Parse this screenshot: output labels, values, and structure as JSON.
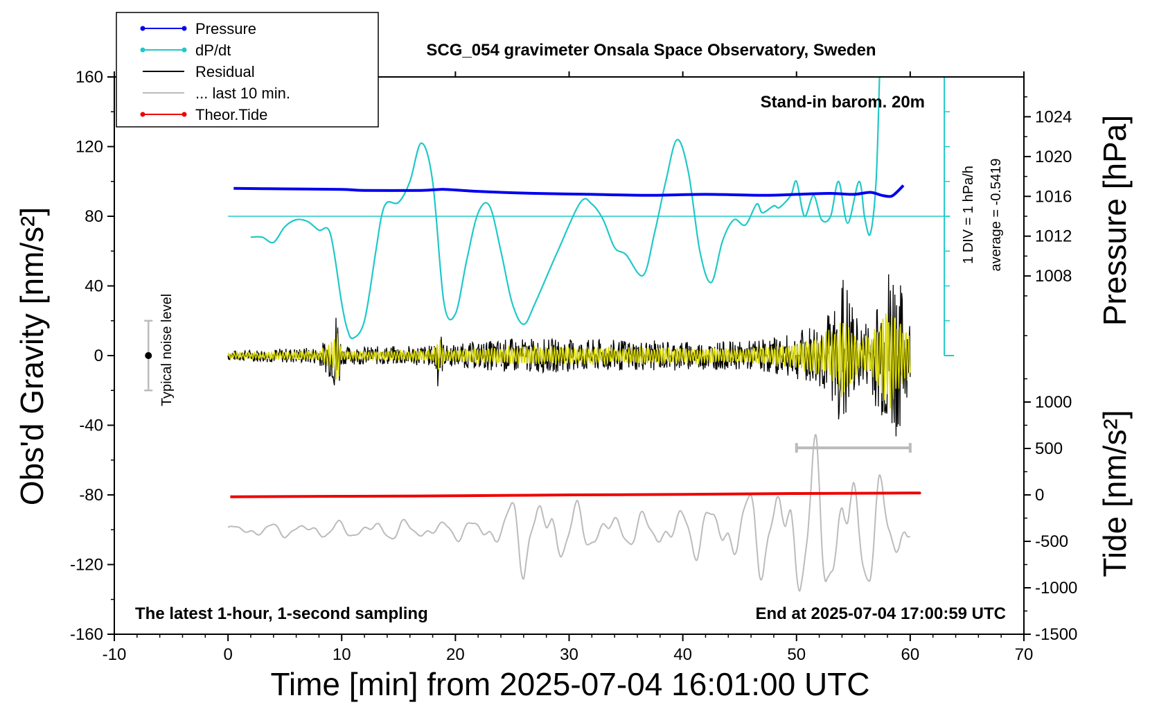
{
  "chart_data": {
    "type": "line",
    "title": "SCG_054 gravimeter Onsala Space Observatory, Sweden",
    "xlabel": "Time [min] from 2025-07-04 16:01:00 UTC",
    "ylabel_left": "Obs'd Gravity [nm/s²]",
    "ylabel_right_top": "Pressure [hPa]",
    "ylabel_right_bottom": "Tide [nm/s²]",
    "xlim": [
      -10,
      70
    ],
    "ylim": [
      -160,
      160
    ],
    "pressure_ylim": [
      1000,
      1028
    ],
    "tide_ylim": [
      -1500,
      4500
    ],
    "x_ticks": [
      "-10",
      "0",
      "10",
      "20",
      "30",
      "40",
      "50",
      "60",
      "70"
    ],
    "y_ticks": [
      "160",
      "120",
      "80",
      "40",
      "0",
      "-40",
      "-80",
      "-120",
      "-160"
    ],
    "pressure_ticks": [
      "1024",
      "1020",
      "1016",
      "1012",
      "1008"
    ],
    "tide_ticks": [
      "1000",
      "500",
      "0",
      "-500",
      "-1000",
      "-1500"
    ],
    "annotations": {
      "barometer": "Stand-in barom. 20m",
      "scale_div": "1 DIV = 1 hPa/h",
      "average": "average = -0.5419",
      "noise": "Typical noise level",
      "latest": "The latest 1-hour, 1-second sampling",
      "end_time": "End at 2025-07-04 17:00:59 UTC"
    },
    "legend": {
      "position": "top-left",
      "entries": [
        {
          "label": "Pressure",
          "color": "#0000ee",
          "marker": true
        },
        {
          "label": "dP/dt",
          "color": "#20c8c8",
          "marker": true
        },
        {
          "label": "Residual",
          "color": "#000000",
          "marker": false
        },
        {
          "label": "... last 10 min.",
          "color": "#bbbbbb",
          "marker": false
        },
        {
          "label": "Theor.Tide",
          "color": "#ee0000",
          "marker": true
        }
      ]
    },
    "colors": {
      "pressure": "#0000ee",
      "dpdt": "#20c8c8",
      "residual": "#000000",
      "residual_filtered": "#d8d800",
      "last10": "#bbbbbb",
      "tide": "#ee0000",
      "noise_bar": "#bbbbbb"
    },
    "series": [
      {
        "name": "Pressure",
        "axis": "pressure",
        "points": [
          [
            0.5,
            1016.8
          ],
          [
            5,
            1016.75
          ],
          [
            10,
            1016.7
          ],
          [
            12,
            1016.6
          ],
          [
            17,
            1016.6
          ],
          [
            19,
            1016.7
          ],
          [
            22,
            1016.5
          ],
          [
            27,
            1016.3
          ],
          [
            32,
            1016.2
          ],
          [
            37,
            1016.1
          ],
          [
            42,
            1016.2
          ],
          [
            47,
            1016.1
          ],
          [
            50,
            1016.2
          ],
          [
            53,
            1016.3
          ],
          [
            55,
            1016.2
          ],
          [
            56.5,
            1016.4
          ],
          [
            57.5,
            1016.1
          ],
          [
            58.3,
            1016.0
          ],
          [
            58.8,
            1016.4
          ],
          [
            59.4,
            1017.1
          ]
        ]
      },
      {
        "name": "dP/dt",
        "axis": "gravity",
        "points": [
          [
            2,
            68
          ],
          [
            3,
            68
          ],
          [
            4,
            65
          ],
          [
            5,
            74
          ],
          [
            6,
            78
          ],
          [
            7,
            77
          ],
          [
            8,
            72
          ],
          [
            9,
            70
          ],
          [
            10,
            30
          ],
          [
            10.5,
            15
          ],
          [
            11,
            10
          ],
          [
            12,
            20
          ],
          [
            13,
            60
          ],
          [
            13.5,
            80
          ],
          [
            14,
            88
          ],
          [
            15,
            88
          ],
          [
            16,
            100
          ],
          [
            17,
            122
          ],
          [
            18,
            100
          ],
          [
            19,
            30
          ],
          [
            20,
            24
          ],
          [
            21,
            55
          ],
          [
            22,
            82
          ],
          [
            23,
            86
          ],
          [
            24,
            60
          ],
          [
            25,
            30
          ],
          [
            26,
            18
          ],
          [
            27,
            30
          ],
          [
            29,
            60
          ],
          [
            31,
            88
          ],
          [
            32,
            87
          ],
          [
            33,
            78
          ],
          [
            34,
            62
          ],
          [
            35,
            58
          ],
          [
            36.5,
            46
          ],
          [
            37.5,
            70
          ],
          [
            38.5,
            100
          ],
          [
            39.5,
            124
          ],
          [
            40.5,
            105
          ],
          [
            41.5,
            60
          ],
          [
            42.5,
            42
          ],
          [
            43.5,
            66
          ],
          [
            44.5,
            78
          ],
          [
            45.5,
            75
          ],
          [
            46.5,
            87
          ],
          [
            47,
            82
          ],
          [
            48,
            86
          ],
          [
            48.5,
            85
          ],
          [
            49.5,
            92
          ],
          [
            50,
            100
          ],
          [
            50.7,
            80
          ],
          [
            51.5,
            92
          ],
          [
            52.2,
            78
          ],
          [
            53,
            80
          ],
          [
            53.7,
            100
          ],
          [
            54.5,
            76
          ],
          [
            55.5,
            100
          ],
          [
            56,
            79
          ],
          [
            56.5,
            70
          ],
          [
            57,
            100
          ],
          [
            57.3,
            160
          ]
        ]
      },
      {
        "name": "Theor.Tide",
        "axis": "tide",
        "points": [
          [
            0.2,
            -20
          ],
          [
            10,
            -15
          ],
          [
            20,
            -10
          ],
          [
            30,
            0
          ],
          [
            40,
            5
          ],
          [
            50,
            15
          ],
          [
            60,
            20
          ],
          [
            60.3,
            20
          ]
        ]
      }
    ],
    "residual_envelope": [
      [
        0,
        3
      ],
      [
        8,
        5
      ],
      [
        9.2,
        15
      ],
      [
        9.6,
        32
      ],
      [
        10,
        5
      ],
      [
        18,
        6
      ],
      [
        18.5,
        20
      ],
      [
        19,
        6
      ],
      [
        25,
        10
      ],
      [
        45,
        8
      ],
      [
        49.5,
        12
      ],
      [
        52,
        20
      ],
      [
        53.5,
        30
      ],
      [
        54,
        50
      ],
      [
        54.5,
        40
      ],
      [
        55.5,
        18
      ],
      [
        56.5,
        22
      ],
      [
        57.5,
        40
      ],
      [
        58,
        50
      ],
      [
        58.5,
        60
      ],
      [
        59,
        45
      ],
      [
        60,
        20
      ]
    ],
    "last10_amplitude": [
      [
        0,
        80
      ],
      [
        5,
        90
      ],
      [
        10,
        110
      ],
      [
        15,
        130
      ],
      [
        20,
        120
      ],
      [
        24,
        220
      ],
      [
        26,
        600
      ],
      [
        28,
        500
      ],
      [
        30,
        350
      ],
      [
        35,
        200
      ],
      [
        40,
        300
      ],
      [
        45,
        450
      ],
      [
        48,
        700
      ],
      [
        50,
        900
      ],
      [
        52,
        1100
      ],
      [
        54,
        900
      ],
      [
        56,
        800
      ],
      [
        58,
        600
      ],
      [
        60,
        300
      ]
    ],
    "noise_level": {
      "x": -7,
      "center": 0,
      "half_range": 20
    },
    "last10_bar": {
      "x_start": 50,
      "x_end": 60,
      "y": -53
    }
  }
}
